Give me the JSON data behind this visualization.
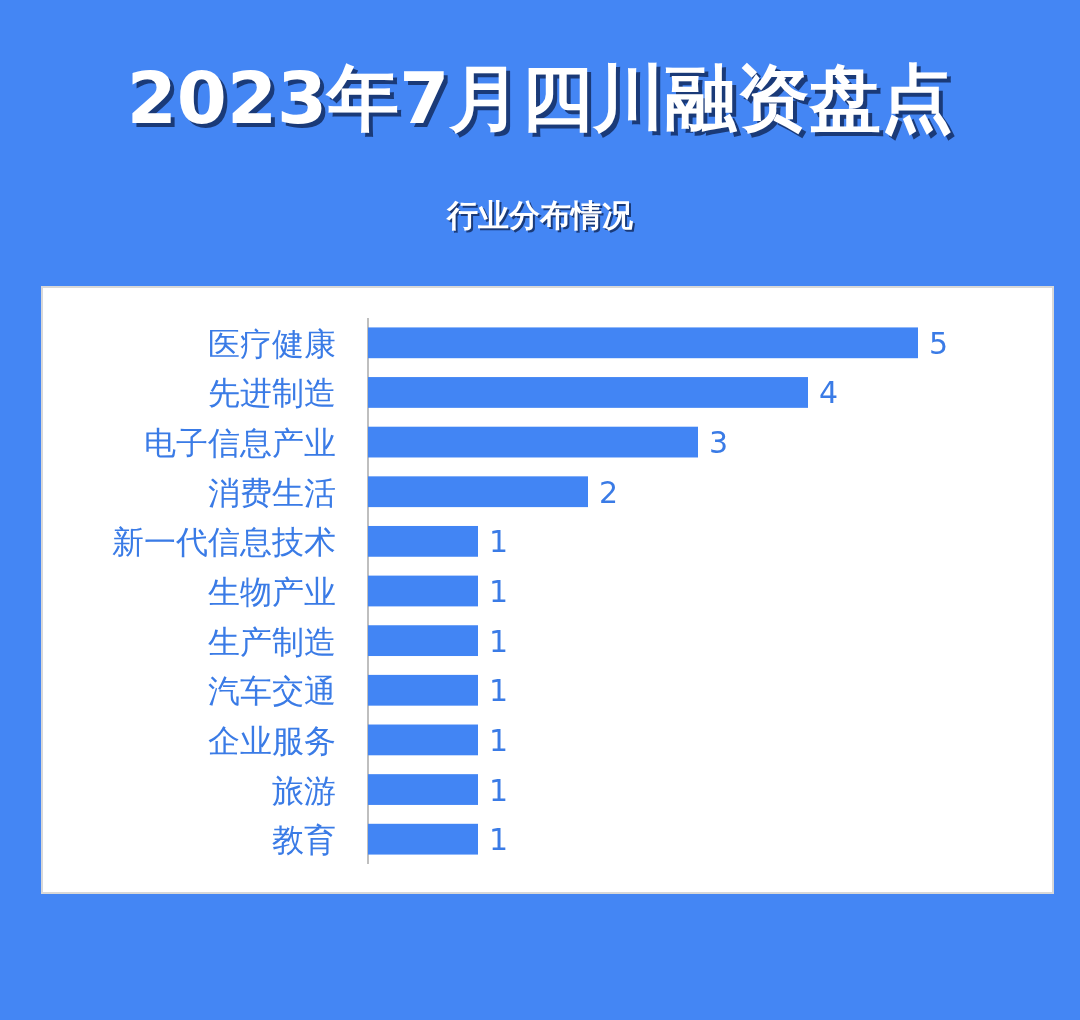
{
  "chart_data": {
    "type": "bar",
    "orientation": "horizontal",
    "title": "2023年7月四川融资盘点",
    "subtitle": "行业分布情况",
    "categories": [
      "医疗健康",
      "先进制造",
      "电子信息产业",
      "消费生活",
      "新一代信息技术",
      "生物产业",
      "生产制造",
      "汽车交通",
      "企业服务",
      "旅游",
      "教育"
    ],
    "values": [
      5,
      4,
      3,
      2,
      1,
      1,
      1,
      1,
      1,
      1,
      1
    ],
    "color": "#4285f4",
    "data_labels": true
  }
}
